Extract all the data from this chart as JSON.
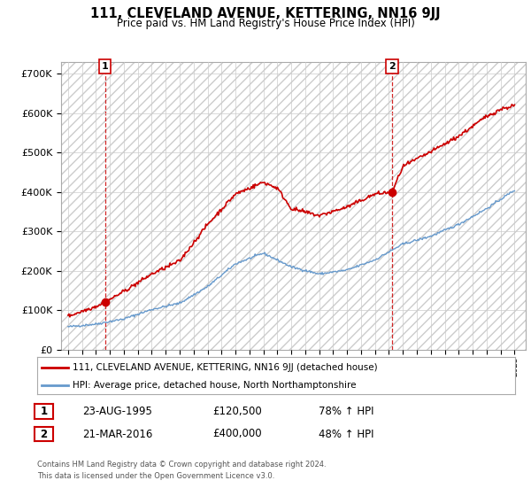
{
  "title": "111, CLEVELAND AVENUE, KETTERING, NN16 9JJ",
  "subtitle": "Price paid vs. HM Land Registry's House Price Index (HPI)",
  "ylabel_values": [
    "£0",
    "£100K",
    "£200K",
    "£300K",
    "£400K",
    "£500K",
    "£600K",
    "£700K"
  ],
  "yticks": [
    0,
    100000,
    200000,
    300000,
    400000,
    500000,
    600000,
    700000
  ],
  "ylim": [
    0,
    730000
  ],
  "xlim_start": 1992.5,
  "xlim_end": 2025.8,
  "sale1": {
    "date_num": 1995.65,
    "price": 120500,
    "label": "1",
    "date_str": "23-AUG-1995",
    "pct": "78%"
  },
  "sale2": {
    "date_num": 2016.22,
    "price": 400000,
    "label": "2",
    "date_str": "21-MAR-2016",
    "pct": "48%"
  },
  "legend_line1": "111, CLEVELAND AVENUE, KETTERING, NN16 9JJ (detached house)",
  "legend_line2": "HPI: Average price, detached house, North Northamptonshire",
  "footer1": "Contains HM Land Registry data © Crown copyright and database right 2024.",
  "footer2": "This data is licensed under the Open Government Licence v3.0.",
  "price_line_color": "#cc0000",
  "hpi_line_color": "#6699cc",
  "grid_color": "#cccccc",
  "dashed_line_color": "#cc0000"
}
